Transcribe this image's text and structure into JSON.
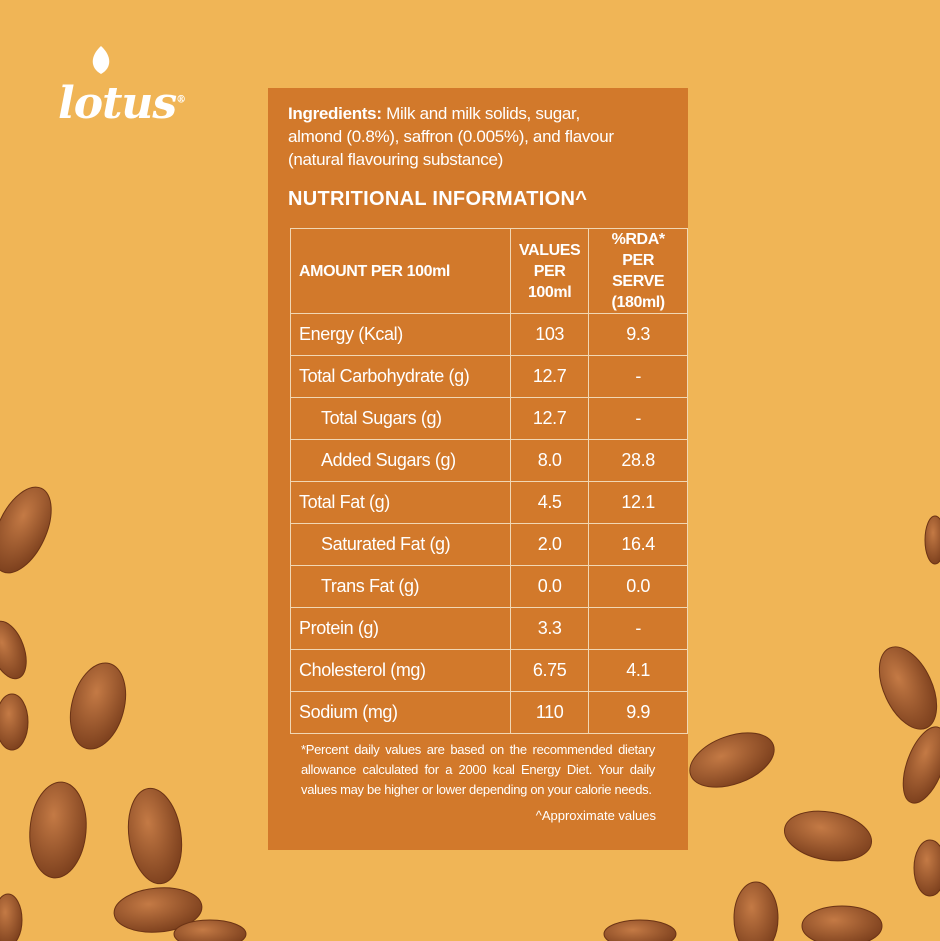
{
  "logo": {
    "name": "lotus",
    "mark": "®"
  },
  "ingredients": {
    "label": "Ingredients:",
    "lines": [
      "Milk and milk solids, sugar,",
      "almond (0.8%), saffron (0.005%), and flavour",
      "(natural flavouring substance)"
    ]
  },
  "heading": "NUTRITIONAL INFORMATION^",
  "table": {
    "header": [
      "AMOUNT PER 100ml",
      "VALUES PER 100ml",
      "%RDA* PER SERVE (180ml)"
    ],
    "rows": [
      [
        "Energy (Kcal)",
        "103",
        "9.3"
      ],
      [
        "Total Carbohydrate (g)",
        "12.7",
        "-"
      ],
      [
        "Total Sugars (g)",
        "12.7",
        "-"
      ],
      [
        "Added Sugars (g)",
        "8.0",
        "28.8"
      ],
      [
        "Total Fat (g)",
        "4.5",
        "12.1"
      ],
      [
        "Saturated Fat (g)",
        "2.0",
        "16.4"
      ],
      [
        "Trans Fat (g)",
        "0.0",
        "0.0"
      ],
      [
        "Protein (g)",
        "3.3",
        "-"
      ],
      [
        "Cholesterol (mg)",
        "6.75",
        "4.1"
      ],
      [
        "Sodium (mg)",
        "110",
        "9.9"
      ]
    ]
  },
  "footnote": "*Percent daily values are based on the recommended dietary allowance calculated for a 2000 kcal Energy Diet. Your daily values may be higher or lower depending on your calorie needs.",
  "footnote_note": "^Approximate values"
}
